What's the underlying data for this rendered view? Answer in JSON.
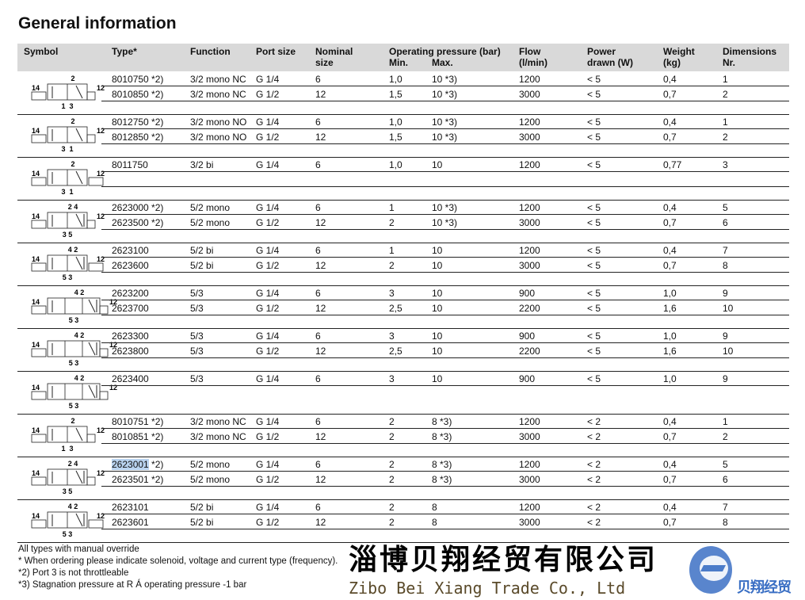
{
  "title": "General information",
  "headers": {
    "symbol": "Symbol",
    "type": "Type*",
    "function": "Function",
    "port": "Port size",
    "nominal": "Nominal\nsize",
    "pressure": "Operating pressure (bar)",
    "min": "Min.",
    "max": "Max.",
    "flow": "Flow\n(l/min)",
    "power": "Power\ndrawn (W)",
    "weight": "Weight\n(kg)",
    "dim": "Dimensions\nNr."
  },
  "groups": [
    {
      "symbol": {
        "kind": "3/2",
        "top": "2",
        "bottom": "1  3"
      },
      "rows": [
        {
          "type": "8010750 *2)",
          "function": "3/2 mono NC",
          "port": "G 1/4",
          "nominal": "6",
          "min": "1,0",
          "max": "10 *3)",
          "flow": "1200",
          "power": "< 5",
          "weight": "0,4",
          "dim": "1"
        },
        {
          "type": "8010850 *2)",
          "function": "3/2 mono NC",
          "port": "G 1/2",
          "nominal": "12",
          "min": "1,5",
          "max": "10 *3)",
          "flow": "3000",
          "power": "< 5",
          "weight": "0,7",
          "dim": "2"
        }
      ]
    },
    {
      "symbol": {
        "kind": "3/2",
        "top": "2",
        "bottom": "3  1"
      },
      "rows": [
        {
          "type": "8012750 *2)",
          "function": "3/2 mono NO",
          "port": "G 1/4",
          "nominal": "6",
          "min": "1,0",
          "max": "10 *3)",
          "flow": "1200",
          "power": "< 5",
          "weight": "0,4",
          "dim": "1"
        },
        {
          "type": "8012850 *2)",
          "function": "3/2 mono NO",
          "port": "G 1/2",
          "nominal": "12",
          "min": "1,5",
          "max": "10 *3)",
          "flow": "3000",
          "power": "< 5",
          "weight": "0,7",
          "dim": "2"
        }
      ]
    },
    {
      "symbol": {
        "kind": "3/2bi",
        "top": "2",
        "bottom": "3  1"
      },
      "rows": [
        {
          "type": "8011750",
          "function": "3/2 bi",
          "port": "G 1/4",
          "nominal": "6",
          "min": "1,0",
          "max": "10",
          "flow": "1200",
          "power": "< 5",
          "weight": "0,77",
          "dim": "3"
        },
        {}
      ]
    },
    {
      "symbol": {
        "kind": "5/2",
        "top": "2 4",
        "bottom": "3 5"
      },
      "rows": [
        {
          "type": "2623000 *2)",
          "function": "5/2 mono",
          "port": "G 1/4",
          "nominal": "6",
          "min": "1",
          "max": "10 *3)",
          "flow": "1200",
          "power": "< 5",
          "weight": "0,4",
          "dim": "5"
        },
        {
          "type": "2623500 *2)",
          "function": "5/2 mono",
          "port": "G 1/2",
          "nominal": "12",
          "min": "2",
          "max": "10 *3)",
          "flow": "3000",
          "power": "< 5",
          "weight": "0,7",
          "dim": "6"
        }
      ]
    },
    {
      "symbol": {
        "kind": "5/2bi",
        "top": "4 2",
        "bottom": "5 3"
      },
      "rows": [
        {
          "type": "2623100",
          "function": "5/2 bi",
          "port": "G 1/4",
          "nominal": "6",
          "min": "1",
          "max": "10",
          "flow": "1200",
          "power": "< 5",
          "weight": "0,4",
          "dim": "7"
        },
        {
          "type": "2623600",
          "function": "5/2 bi",
          "port": "G 1/2",
          "nominal": "12",
          "min": "2",
          "max": "10",
          "flow": "3000",
          "power": "< 5",
          "weight": "0,7",
          "dim": "8"
        }
      ]
    },
    {
      "symbol": {
        "kind": "5/3",
        "top": "4 2",
        "bottom": "5 3"
      },
      "rows": [
        {
          "type": "2623200",
          "function": "5/3",
          "port": "G 1/4",
          "nominal": "6",
          "min": "3",
          "max": "10",
          "flow": "900",
          "power": "< 5",
          "weight": "1,0",
          "dim": "9"
        },
        {
          "type": "2623700",
          "function": "5/3",
          "port": "G 1/2",
          "nominal": "12",
          "min": "2,5",
          "max": "10",
          "flow": "2200",
          "power": "< 5",
          "weight": "1,6",
          "dim": "10"
        }
      ]
    },
    {
      "symbol": {
        "kind": "5/3",
        "top": "4 2",
        "bottom": "5 3"
      },
      "rows": [
        {
          "type": "2623300",
          "function": "5/3",
          "port": "G 1/4",
          "nominal": "6",
          "min": "3",
          "max": "10",
          "flow": "900",
          "power": "< 5",
          "weight": "1,0",
          "dim": "9"
        },
        {
          "type": "2623800",
          "function": "5/3",
          "port": "G 1/2",
          "nominal": "12",
          "min": "2,5",
          "max": "10",
          "flow": "2200",
          "power": "< 5",
          "weight": "1,6",
          "dim": "10"
        }
      ]
    },
    {
      "symbol": {
        "kind": "5/3",
        "top": "4 2",
        "bottom": "5 3"
      },
      "rows": [
        {
          "type": "2623400",
          "function": "5/3",
          "port": "G 1/4",
          "nominal": "6",
          "min": "3",
          "max": "10",
          "flow": "900",
          "power": "< 5",
          "weight": "1,0",
          "dim": "9"
        }
      ]
    },
    {
      "symbol": {
        "kind": "3/2",
        "top": "2",
        "bottom": "1  3"
      },
      "rows": [
        {
          "type": "8010751 *2)",
          "function": "3/2 mono NC",
          "port": "G 1/4",
          "nominal": "6",
          "min": "2",
          "max": "8 *3)",
          "flow": "1200",
          "power": "< 2",
          "weight": "0,4",
          "dim": "1"
        },
        {
          "type": "8010851 *2)",
          "function": "3/2 mono NC",
          "port": "G 1/2",
          "nominal": "12",
          "min": "2",
          "max": "8 *3)",
          "flow": "3000",
          "power": "< 2",
          "weight": "0,7",
          "dim": "2"
        }
      ]
    },
    {
      "symbol": {
        "kind": "5/2",
        "top": "2 4",
        "bottom": "3 5"
      },
      "rows": [
        {
          "type": "2623001",
          "type_suffix": " *2)",
          "selected": true,
          "function": "5/2 mono",
          "port": "G 1/4",
          "nominal": "6",
          "min": "2",
          "max": "8 *3)",
          "flow": "1200",
          "power": "< 2",
          "weight": "0,4",
          "dim": "5"
        },
        {
          "type": "2623501 *2)",
          "function": "5/2 mono",
          "port": "G 1/2",
          "nominal": "12",
          "min": "2",
          "max": "8 *3)",
          "flow": "3000",
          "power": "< 2",
          "weight": "0,7",
          "dim": "6"
        }
      ]
    },
    {
      "symbol": {
        "kind": "5/2bi",
        "top": "4 2",
        "bottom": "5 3"
      },
      "rows": [
        {
          "type": "2623101",
          "function": "5/2 bi",
          "port": "G 1/4",
          "nominal": "6",
          "min": "2",
          "max": "8",
          "flow": "1200",
          "power": "< 2",
          "weight": "0,4",
          "dim": "7"
        },
        {
          "type": "2623601",
          "function": "5/2 bi",
          "port": "G 1/2",
          "nominal": "12",
          "min": "2",
          "max": "8",
          "flow": "3000",
          "power": "< 2",
          "weight": "0,7",
          "dim": "8"
        }
      ]
    }
  ],
  "footnotes": [
    "All types with manual override",
    "* When ordering please indicate solenoid, voltage and current type (frequency).",
    "*2) Port 3 is not throttleable",
    "*3) Stagnation pressure at R Á operating pressure -1 bar"
  ],
  "watermark": {
    "company_cn": "淄博贝翔经贸有限公司",
    "company_en": "Zibo Bei Xiang Trade Co., Ltd",
    "logo_text": "贝翔经贸"
  },
  "colors": {
    "header_bg": "#d9d9d9",
    "selection": "#b9d3ef",
    "logo_blue": "#2f66c0"
  }
}
